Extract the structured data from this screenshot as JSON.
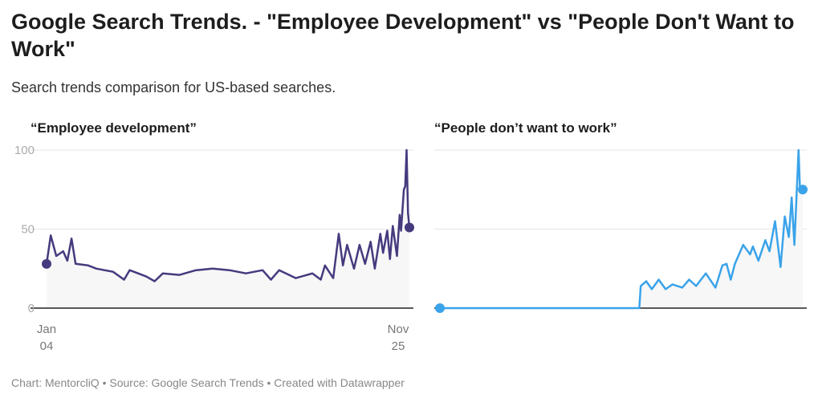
{
  "title": "Google Search Trends. - \"Employee  Development\" vs \"People Don't Want to Work\"",
  "subtitle": "Search trends comparison for US-based searches.",
  "footer": "Chart: MentorcliQ • Source: Google Search Trends • Created with Datawrapper",
  "chart_data": [
    {
      "type": "area",
      "title": "“Employee development”",
      "color": "#463a7e",
      "ylim": [
        0,
        100
      ],
      "yticks": [
        "0",
        "50",
        "100"
      ],
      "xticks": [
        [
          "Jan",
          "04"
        ],
        [
          "Nov",
          "25"
        ]
      ],
      "grid": true,
      "points": [
        [
          "2004-01",
          28
        ],
        [
          "2004-04",
          46
        ],
        [
          "2004-08",
          33
        ],
        [
          "2005-01",
          36
        ],
        [
          "2005-04",
          30
        ],
        [
          "2005-07",
          44
        ],
        [
          "2005-10",
          28
        ],
        [
          "2006-07",
          27
        ],
        [
          "2007-01",
          25
        ],
        [
          "2008-01",
          23
        ],
        [
          "2008-09",
          18
        ],
        [
          "2009-01",
          24
        ],
        [
          "2010-01",
          20
        ],
        [
          "2010-07",
          17
        ],
        [
          "2011-01",
          22
        ],
        [
          "2012-01",
          21
        ],
        [
          "2013-01",
          24
        ],
        [
          "2014-01",
          25
        ],
        [
          "2015-01",
          24
        ],
        [
          "2016-01",
          22
        ],
        [
          "2017-01",
          24
        ],
        [
          "2017-07",
          18
        ],
        [
          "2018-01",
          24
        ],
        [
          "2019-01",
          19
        ],
        [
          "2020-01",
          22
        ],
        [
          "2020-07",
          18
        ],
        [
          "2020-10",
          27
        ],
        [
          "2021-04",
          19
        ],
        [
          "2021-08",
          47
        ],
        [
          "2021-11",
          27
        ],
        [
          "2022-02",
          40
        ],
        [
          "2022-07",
          25
        ],
        [
          "2022-11",
          40
        ],
        [
          "2023-03",
          28
        ],
        [
          "2023-07",
          42
        ],
        [
          "2023-10",
          25
        ],
        [
          "2024-02",
          47
        ],
        [
          "2024-04",
          35
        ],
        [
          "2024-07",
          49
        ],
        [
          "2024-09",
          31
        ],
        [
          "2024-11",
          52
        ],
        [
          "2025-02",
          33
        ],
        [
          "2025-04",
          59
        ],
        [
          "2025-05",
          49
        ],
        [
          "2025-07",
          75
        ],
        [
          "2025-08",
          77
        ],
        [
          "2025-09",
          100
        ],
        [
          "2025-10",
          60
        ],
        [
          "2025-11",
          51
        ]
      ]
    },
    {
      "type": "area",
      "title": "“People don’t want to work”",
      "color": "#3aa3ea",
      "ylim": [
        0,
        100
      ],
      "grid": true,
      "points": [
        [
          "2004-01",
          0
        ],
        [
          "2016-01",
          0
        ],
        [
          "2016-02",
          14
        ],
        [
          "2016-06",
          17
        ],
        [
          "2016-10",
          12
        ],
        [
          "2017-03",
          18
        ],
        [
          "2017-08",
          12
        ],
        [
          "2018-01",
          15
        ],
        [
          "2018-08",
          13
        ],
        [
          "2019-01",
          18
        ],
        [
          "2019-06",
          14
        ],
        [
          "2020-01",
          22
        ],
        [
          "2020-08",
          13
        ],
        [
          "2021-01",
          27
        ],
        [
          "2021-04",
          28
        ],
        [
          "2021-07",
          18
        ],
        [
          "2021-10",
          28
        ],
        [
          "2022-04",
          40
        ],
        [
          "2022-09",
          34
        ],
        [
          "2022-11",
          39
        ],
        [
          "2023-03",
          30
        ],
        [
          "2023-08",
          43
        ],
        [
          "2023-11",
          36
        ],
        [
          "2024-03",
          55
        ],
        [
          "2024-07",
          26
        ],
        [
          "2024-10",
          58
        ],
        [
          "2025-01",
          45
        ],
        [
          "2025-03",
          70
        ],
        [
          "2025-05",
          40
        ],
        [
          "2025-08",
          100
        ],
        [
          "2025-09",
          76
        ],
        [
          "2025-11",
          75
        ]
      ]
    }
  ]
}
